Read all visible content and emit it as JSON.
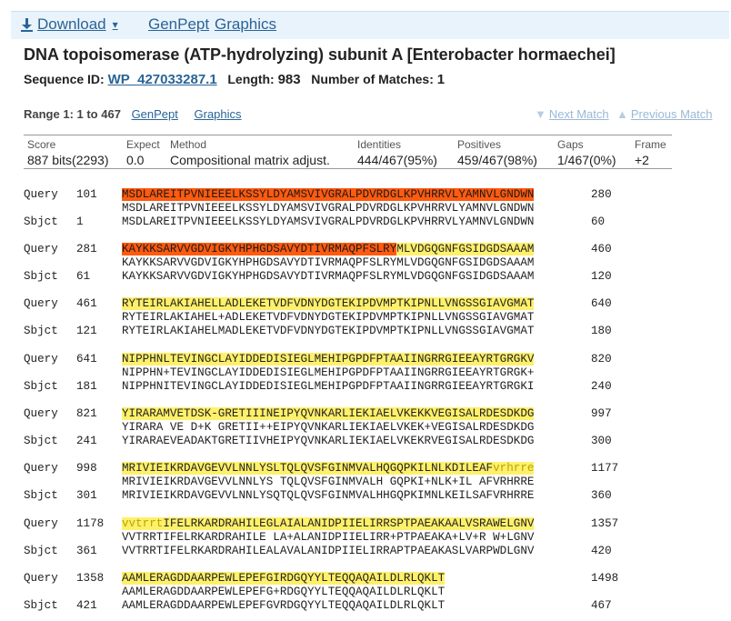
{
  "toolbar": {
    "download_label": "Download",
    "genpept_label": "GenPept",
    "graphics_label": "Graphics"
  },
  "title": "DNA topoisomerase (ATP-hydrolyzing) subunit A [Enterobacter hormaechei]",
  "seqinfo": {
    "sequence_id_label": "Sequence ID:",
    "sequence_id": "WP_427033287.1",
    "length_label": "Length:",
    "length": "983",
    "matches_label": "Number of Matches:",
    "matches": "1"
  },
  "range": {
    "label": "Range 1: 1 to 467",
    "genpept_label": "GenPept",
    "graphics_label": "Graphics",
    "next_match_label": "Next Match",
    "previous_match_label": "Previous Match"
  },
  "score_table": {
    "headers": [
      "Score",
      "Expect",
      "Method",
      "Identities",
      "Positives",
      "Gaps",
      "Frame"
    ],
    "values": [
      "887 bits(2293)",
      "0.0",
      "Compositional matrix adjust.",
      "444/467(95%)",
      "459/467(98%)",
      "1/467(0%)",
      "+2"
    ]
  },
  "alignment": [
    {
      "q_label": "Query",
      "q_start": "101",
      "q_seq": "MSDLAREITPVNIEEELKSSYLDYAMSVIVGRALPDVRDGLKPVHRRVLYAMNVLGNDWN",
      "q_end": "280",
      "match": "MSDLAREITPVNIEEELKSSYLDYAMSVIVGRALPDVRDGLKPVHRRVLYAMNVLGNDWN",
      "s_label": "Sbjct",
      "s_start": "1",
      "s_seq": "MSDLAREITPVNIEEELKSSYLDYAMSVIVGRALPDVRDGLKPVHRRVLYAMNVLGNDWN",
      "s_end": "60"
    },
    {
      "q_label": "Query",
      "q_start": "281",
      "q_seq": "KAYKKSARVVGDVIGKYHPHGDSAVYDTIVRMAQPFSLRYMLVDGQGNFGSIDGDSAAAM",
      "q_end": "460",
      "match": "KAYKKSARVVGDVIGKYHPHGDSAVYDTIVRMAQPFSLRYMLVDGQGNFGSIDGDSAAAM",
      "s_label": "Sbjct",
      "s_start": "61",
      "s_seq": "KAYKKSARVVGDVIGKYHPHGDSAVYDTIVRMAQPFSLRYMLVDGQGNFGSIDGDSAAAM",
      "s_end": "120"
    },
    {
      "q_label": "Query",
      "q_start": "461",
      "q_seq": "RYTEIRLAKIAHELLADLEKETVDFVDNYDGTEKIPDVMPTKIPNLLVNGSSGIAVGMAT",
      "q_end": "640",
      "match": "RYTEIRLAKIAHEL+ADLEKETVDFVDNYDGTEKIPDVMPTKIPNLLVNGSSGIAVGMAT",
      "s_label": "Sbjct",
      "s_start": "121",
      "s_seq": "RYTEIRLAKIAHELMADLEKETVDFVDNYDGTEKIPDVMPTKIPNLLVNGSSGIAVGMAT",
      "s_end": "180"
    },
    {
      "q_label": "Query",
      "q_start": "641",
      "q_seq": "NIPPHNLTEVINGCLAYIDDEDISIEGLMEHIPGPDFPTAAIINGRRGIEEAYRTGRGKV",
      "q_end": "820",
      "match": "NIPPHN+TEVINGCLAYIDDEDISIEGLMEHIPGPDFPTAAIINGRRGIEEAYRTGRGK+",
      "s_label": "Sbjct",
      "s_start": "181",
      "s_seq": "NIPPHNITEVINGCLAYIDDEDISIEGLMEHIPGPDFPTAAIINGRRGIEEAYRTGRGKI",
      "s_end": "240"
    },
    {
      "q_label": "Query",
      "q_start": "821",
      "q_seq": "YIRARAMVETDSK-GRETIIINEIPYQVNKARLIEKIAELVKEKKVEGISALRDESDKDG",
      "q_end": "997",
      "match": "YIRARA VE D+K GRETII++EIPYQVNKARLIEKIAELVKEK+VEGISALRDESDKDG",
      "s_label": "Sbjct",
      "s_start": "241",
      "s_seq": "YIRARAEVEADAKTGRETIIVHEIPYQVNKARLIEKIAELVKEKRVEGISALRDESDKDG",
      "s_end": "300"
    },
    {
      "q_label": "Query",
      "q_start": "998",
      "q_seq": "MRIVIEIKRDAVGEVVLNNLYSLTQLQVSFGINMVALHQGQPKILNLKDILEAFvrhrre",
      "q_end": "1177",
      "match": "MRIVIEIKRDAVGEVVLNNLYS TQLQVSFGINMVALH GQPKI+NLK+IL AFVRHRRE",
      "s_label": "Sbjct",
      "s_start": "301",
      "s_seq": "MRIVIEIKRDAVGEVVLNNLYSQTQLQVSFGINMVALHHGQPKIMNLKEILSAFVRHRRE",
      "s_end": "360"
    },
    {
      "q_label": "Query",
      "q_start": "1178",
      "q_seq": "vvtrrtIFELRKARDRAHILEGLAIALANIDPIIELIRRSPTPAEAKAALVSRAWELGNV",
      "q_end": "1357",
      "match": "VVTRRTIFELRKARDRAHILE LA+ALANIDPIIELIRR+PTPAEAKA+LV+R W+LGNV",
      "s_label": "Sbjct",
      "s_start": "361",
      "s_seq": "VVTRRTIFELRKARDRAHILEALAVALANIDPIIELIRRAPTPAEAKASLVARPWDLGNV",
      "s_end": "420"
    },
    {
      "q_label": "Query",
      "q_start": "1358",
      "q_seq": "AAMLERAGDDAARPEWLEPEFGIRDGQYYLTEQQAQAILDLRLQKLT",
      "q_end": "1498",
      "match": "AAMLERAGDDAARPEWLEPEFG+RDGQYYLTEQQAQAILDLRLQKLT",
      "s_label": "Sbjct",
      "s_start": "421",
      "s_seq": "AAMLERAGDDAARPEWLEPEFGVRDGQYYLTEQQAQAILDLRLQKLT",
      "s_end": "467"
    }
  ]
}
